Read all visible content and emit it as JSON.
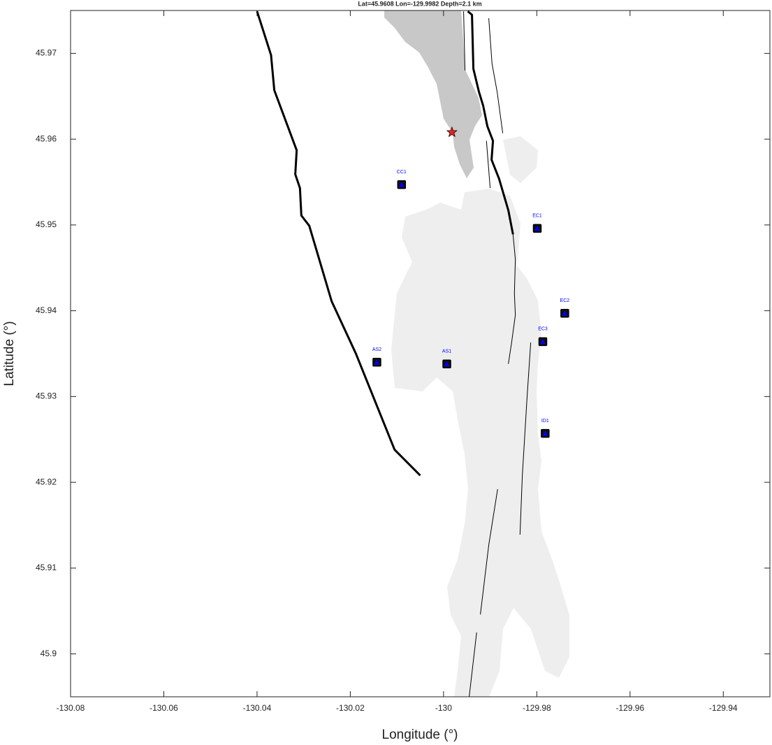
{
  "chart_data": {
    "type": "map",
    "title": "Lat=45.9608  Lon=-129.9982  Depth=2.1 km",
    "xlabel": "Longitude (°)",
    "ylabel": "Latitude (°)",
    "xlim": [
      -130.08,
      -129.93
    ],
    "ylim": [
      45.895,
      45.975
    ],
    "xticks": [
      -130.08,
      -130.06,
      -130.04,
      -130.02,
      -130,
      -129.98,
      -129.96,
      -129.94
    ],
    "yticks": [
      45.9,
      45.91,
      45.92,
      45.93,
      45.94,
      45.95,
      45.96,
      45.97
    ],
    "stations": {
      "names": [
        "CC1",
        "EC1",
        "EC2",
        "EC3",
        "AS2",
        "AS1",
        "ID1"
      ],
      "lon": [
        -130.009,
        -129.9799,
        -129.974,
        -129.9787,
        -130.0143,
        -129.9993,
        -129.9782
      ],
      "lat": [
        45.9547,
        45.9496,
        45.9397,
        45.9364,
        45.934,
        45.9338,
        45.9257
      ],
      "color": "#0000ff"
    },
    "epicenter": {
      "lon": -129.9982,
      "lat": 45.9608,
      "color": "#e82020"
    },
    "thick_lines": [
      {
        "lon": [
          -130.04,
          -130.037,
          -130.0363,
          -130.0315,
          -130.0318,
          -130.0308,
          -130.0305,
          -130.0288,
          -130.024,
          -130.0188,
          -130.0105,
          -130.005
        ],
        "lat": [
          45.9749,
          45.9698,
          45.9657,
          45.9587,
          45.9559,
          45.9543,
          45.9511,
          45.9499,
          45.9411,
          45.935,
          45.9238,
          45.9208
        ]
      },
      {
        "lon": [
          -129.9948,
          -129.9939,
          -129.9936,
          -129.9924,
          -129.9915,
          -129.9906,
          -129.9894,
          -129.9897,
          -129.9881,
          -129.9861,
          -129.9851
        ],
        "lat": [
          45.9749,
          45.9745,
          45.9682,
          45.9655,
          45.9639,
          45.9615,
          45.9598,
          45.9576,
          45.9554,
          45.9517,
          45.9489
        ]
      }
    ],
    "thin_lines": [
      {
        "lon": [
          -129.9851,
          -129.9846,
          -129.9848,
          -129.9846,
          -129.9854,
          -129.9861
        ],
        "lat": [
          45.9489,
          45.946,
          45.942,
          45.9395,
          45.9363,
          45.9338
        ]
      },
      {
        "lon": [
          -129.9813,
          -129.9821,
          -129.9831,
          -129.9836
        ],
        "lat": [
          45.9363,
          45.9298,
          45.9208,
          45.9139
        ]
      },
      {
        "lon": [
          -129.9884,
          -129.9903,
          -129.9921
        ],
        "lat": [
          45.9192,
          45.9127,
          45.9046
        ]
      },
      {
        "lon": [
          -129.9929,
          -129.9945
        ],
        "lat": [
          45.9025,
          45.895
        ]
      },
      {
        "lon": [
          -129.9957,
          -129.9954
        ],
        "lat": [
          45.9749,
          45.968
        ]
      },
      {
        "lon": [
          -129.9903,
          -129.9896,
          -129.9885,
          -129.9873
        ],
        "lat": [
          45.9741,
          45.9688,
          45.9655,
          45.9607
        ]
      },
      {
        "lon": [
          -129.9908,
          -129.99
        ],
        "lat": [
          45.9598,
          45.9543
        ]
      }
    ]
  }
}
